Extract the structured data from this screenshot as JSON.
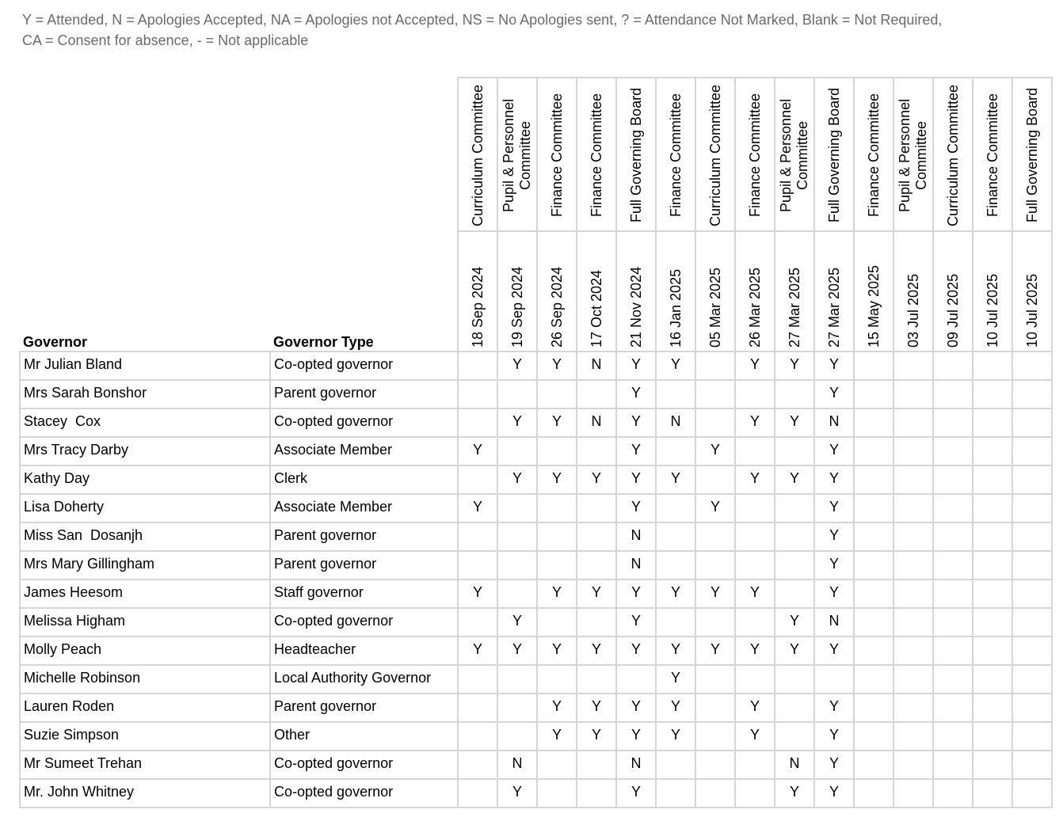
{
  "legend": [
    "Y = Attended, N = Apologies Accepted, NA = Apologies not Accepted, NS = No Apologies sent, ? = Attendance Not Marked, Blank = Not Required,",
    "CA = Consent for absence, - = Not applicable"
  ],
  "table": {
    "governor_header": "Governor",
    "type_header": "Governor Type",
    "meetings": [
      {
        "committee": "Curriculum Committee",
        "date": "18 Sep 2024"
      },
      {
        "committee": "Pupil & Personnel Committee",
        "date": "19 Sep 2024"
      },
      {
        "committee": "Finance Committee",
        "date": "26 Sep 2024"
      },
      {
        "committee": "Finance Committee",
        "date": "17 Oct 2024"
      },
      {
        "committee": "Full Governing Board",
        "date": "21 Nov 2024"
      },
      {
        "committee": "Finance Committee",
        "date": "16 Jan 2025"
      },
      {
        "committee": "Curriculum Committee",
        "date": "05 Mar 2025"
      },
      {
        "committee": "Finance Committee",
        "date": "26 Mar 2025"
      },
      {
        "committee": "Pupil & Personnel Committee",
        "date": "27 Mar 2025"
      },
      {
        "committee": "Full Governing Board",
        "date": "27 Mar 2025"
      },
      {
        "committee": "Finance Committee",
        "date": "15 May 2025"
      },
      {
        "committee": "Pupil & Personnel Committee",
        "date": "03 Jul 2025"
      },
      {
        "committee": "Curriculum Committee",
        "date": "09 Jul 2025"
      },
      {
        "committee": "Finance Committee",
        "date": "10 Jul 2025"
      },
      {
        "committee": "Full Governing Board",
        "date": "10 Jul 2025"
      }
    ],
    "rows": [
      {
        "governor": "Mr Julian Bland",
        "type": "Co-opted governor",
        "attendance": [
          null,
          "Y",
          "Y",
          "N",
          "Y",
          "Y",
          null,
          "Y",
          "Y",
          "Y",
          null,
          null,
          null,
          null,
          null
        ]
      },
      {
        "governor": "Mrs Sarah Bonshor",
        "type": "Parent governor",
        "attendance": [
          null,
          null,
          null,
          null,
          "Y",
          null,
          null,
          null,
          null,
          "Y",
          null,
          null,
          null,
          null,
          null
        ]
      },
      {
        "governor": "Stacey  Cox",
        "type": "Co-opted governor",
        "attendance": [
          null,
          "Y",
          "Y",
          "N",
          "Y",
          "N",
          null,
          "Y",
          "Y",
          "N",
          null,
          null,
          null,
          null,
          null
        ]
      },
      {
        "governor": "Mrs Tracy Darby",
        "type": "Associate Member",
        "attendance": [
          "Y",
          null,
          null,
          null,
          "Y",
          null,
          "Y",
          null,
          null,
          "Y",
          null,
          null,
          null,
          null,
          null
        ]
      },
      {
        "governor": "Kathy Day",
        "type": "Clerk",
        "attendance": [
          null,
          "Y",
          "Y",
          "Y",
          "Y",
          "Y",
          null,
          "Y",
          "Y",
          "Y",
          null,
          null,
          null,
          null,
          null
        ]
      },
      {
        "governor": "Lisa Doherty",
        "type": "Associate Member",
        "attendance": [
          "Y",
          null,
          null,
          null,
          "Y",
          null,
          "Y",
          null,
          null,
          "Y",
          null,
          null,
          null,
          null,
          null
        ]
      },
      {
        "governor": "Miss San  Dosanjh",
        "type": "Parent governor",
        "attendance": [
          null,
          null,
          null,
          null,
          "N",
          null,
          null,
          null,
          null,
          "Y",
          null,
          null,
          null,
          null,
          null
        ]
      },
      {
        "governor": "Mrs Mary Gillingham",
        "type": "Parent governor",
        "attendance": [
          null,
          null,
          null,
          null,
          "N",
          null,
          null,
          null,
          null,
          "Y",
          null,
          null,
          null,
          null,
          null
        ]
      },
      {
        "governor": "James Heesom",
        "type": "Staff governor",
        "attendance": [
          "Y",
          null,
          "Y",
          "Y",
          "Y",
          "Y",
          "Y",
          "Y",
          null,
          "Y",
          null,
          null,
          null,
          null,
          null
        ]
      },
      {
        "governor": "Melissa Higham",
        "type": "Co-opted governor",
        "attendance": [
          null,
          "Y",
          null,
          null,
          "Y",
          null,
          null,
          null,
          "Y",
          "N",
          null,
          null,
          null,
          null,
          null
        ]
      },
      {
        "governor": "Molly Peach",
        "type": "Headteacher",
        "attendance": [
          "Y",
          "Y",
          "Y",
          "Y",
          "Y",
          "Y",
          "Y",
          "Y",
          "Y",
          "Y",
          null,
          null,
          null,
          null,
          null
        ]
      },
      {
        "governor": "Michelle Robinson",
        "type": "Local Authority Governor",
        "attendance": [
          null,
          null,
          null,
          null,
          null,
          "Y",
          null,
          null,
          null,
          null,
          null,
          null,
          null,
          null,
          null
        ]
      },
      {
        "governor": "Lauren Roden",
        "type": "Parent governor",
        "attendance": [
          null,
          null,
          "Y",
          "Y",
          "Y",
          "Y",
          null,
          "Y",
          null,
          "Y",
          null,
          null,
          null,
          null,
          null
        ]
      },
      {
        "governor": "Suzie Simpson",
        "type": "Other",
        "attendance": [
          null,
          null,
          "Y",
          "Y",
          "Y",
          "Y",
          null,
          "Y",
          null,
          "Y",
          null,
          null,
          null,
          null,
          null
        ]
      },
      {
        "governor": "Mr Sumeet Trehan",
        "type": "Co-opted governor",
        "attendance": [
          null,
          "N",
          null,
          null,
          "N",
          null,
          null,
          null,
          "N",
          "Y",
          null,
          null,
          null,
          null,
          null
        ]
      },
      {
        "governor": "Mr. John Whitney",
        "type": "Co-opted governor",
        "attendance": [
          null,
          "Y",
          null,
          null,
          "Y",
          null,
          null,
          null,
          "Y",
          "Y",
          null,
          null,
          null,
          null,
          null
        ]
      }
    ]
  }
}
